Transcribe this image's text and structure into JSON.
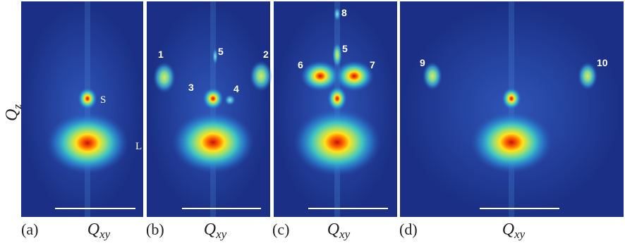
{
  "y_axis_label": {
    "base": "Q",
    "sub": "z"
  },
  "panels": [
    {
      "label": "(a)",
      "x_label": {
        "base": "Q",
        "sub": "xy"
      },
      "spots": [
        "S",
        "L"
      ]
    },
    {
      "label": "(b)",
      "x_label": {
        "base": "Q",
        "sub": "xy"
      },
      "spots": [
        "1",
        "5",
        "2",
        "3",
        "4"
      ]
    },
    {
      "label": "(c)",
      "x_label": {
        "base": "Q",
        "sub": "xy"
      },
      "spots": [
        "8",
        "5",
        "6",
        "7"
      ]
    },
    {
      "label": "(d)",
      "x_label": {
        "base": "Q",
        "sub": "xy"
      },
      "spots": [
        "9",
        "10"
      ]
    }
  ]
}
